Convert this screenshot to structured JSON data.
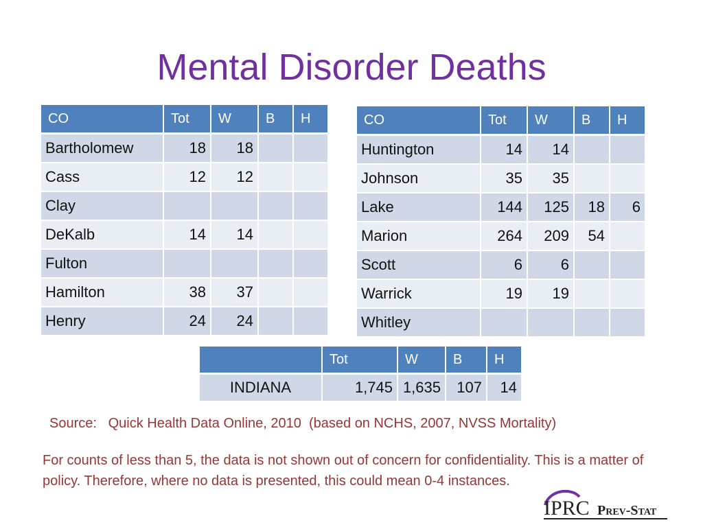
{
  "title": "Mental Disorder Deaths",
  "headers": [
    "CO",
    "Tot",
    "W",
    "B",
    "H"
  ],
  "state_headers": [
    "",
    "Tot",
    "W",
    "B",
    "H"
  ],
  "left_table": [
    [
      "Bartholomew",
      "18",
      "18",
      "",
      ""
    ],
    [
      "Cass",
      "12",
      "12",
      "",
      ""
    ],
    [
      "Clay",
      "",
      "",
      "",
      ""
    ],
    [
      "DeKalb",
      "14",
      "14",
      "",
      ""
    ],
    [
      "Fulton",
      "",
      "",
      "",
      ""
    ],
    [
      "Hamilton",
      "38",
      "37",
      "",
      ""
    ],
    [
      "Henry",
      "24",
      "24",
      "",
      ""
    ]
  ],
  "right_table": [
    [
      "Huntington",
      "14",
      "14",
      "",
      ""
    ],
    [
      "Johnson",
      "35",
      "35",
      "",
      ""
    ],
    [
      "Lake",
      "144",
      "125",
      "18",
      "6"
    ],
    [
      "Marion",
      "264",
      "209",
      "54",
      ""
    ],
    [
      "Scott",
      "6",
      "6",
      "",
      ""
    ],
    [
      "Warrick",
      "19",
      "19",
      "",
      ""
    ],
    [
      "Whitley",
      "",
      "",
      "",
      ""
    ]
  ],
  "state_table": [
    [
      "INDIANA",
      "1,745",
      "1,635",
      "107",
      "14"
    ]
  ],
  "source": "Source:   Quick Health Data Online, 2010  (based on NCHS, 2007, NVSS Mortality)",
  "note": "For counts of less than 5, the data is not shown out of concern for confidentiality. This is a matter of policy. Therefore, where no data is presented, this could mean 0-4 instances.",
  "logo": {
    "text_main": "IPRC",
    "text_sub": "Prev-Stat",
    "colors": {
      "arc": "#7030a0",
      "text": "#222222"
    }
  }
}
